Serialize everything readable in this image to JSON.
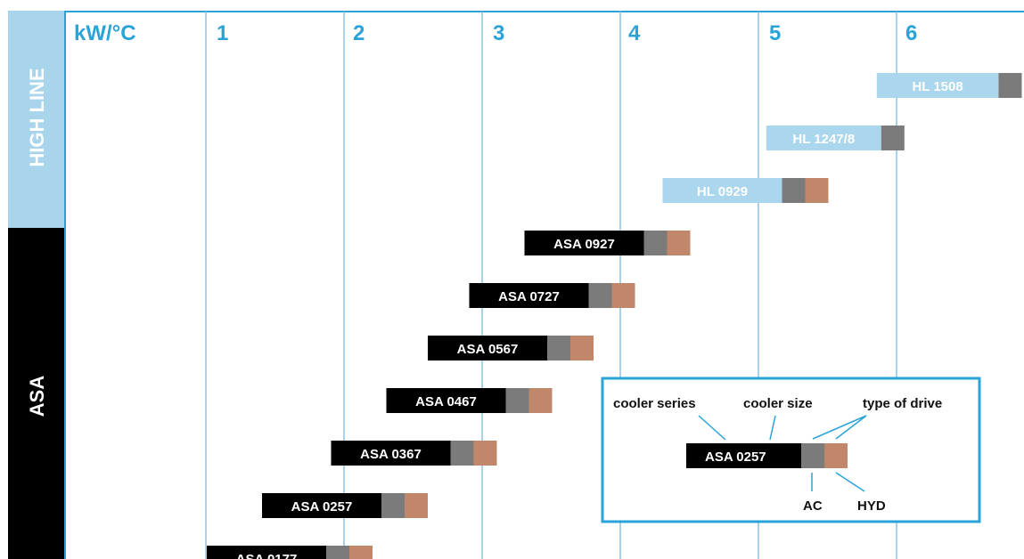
{
  "colors": {
    "accent_blue": "#2aa3d8",
    "high_line_band": "#a8d5ec",
    "high_line_bar": "#aad6ee",
    "asa_band": "#000000",
    "asa_bar": "#000000",
    "ac_segment": "#7b7b7b",
    "hyd_segment": "#c0876a",
    "gridline": "#8cc4e4"
  },
  "bands": [
    {
      "label": "HIGH LINE"
    },
    {
      "label": "ASA"
    }
  ],
  "axis": {
    "unit_label": "kW/°C",
    "ticks": [
      "1",
      "2",
      "3",
      "4",
      "5",
      "6"
    ]
  },
  "chart_data": {
    "type": "bar",
    "orientation": "horizontal range",
    "xlabel": "kW/°C",
    "xlim": [
      0.0,
      6.9
    ],
    "series": [
      {
        "label": "HL 1508",
        "group": "HIGH LINE",
        "start": 5.85,
        "end": 6.9,
        "drives": [
          "AC"
        ]
      },
      {
        "label": "HL 1247/8",
        "group": "HIGH LINE",
        "start": 5.05,
        "end": 6.05,
        "drives": [
          "AC"
        ]
      },
      {
        "label": "HL 0929",
        "group": "HIGH LINE",
        "start": 4.3,
        "end": 5.5,
        "drives": [
          "AC",
          "HYD"
        ]
      },
      {
        "label": "ASA 0927",
        "group": "ASA",
        "start": 3.3,
        "end": 4.5,
        "drives": [
          "AC",
          "HYD"
        ]
      },
      {
        "label": "ASA 0727",
        "group": "ASA",
        "start": 2.9,
        "end": 4.1,
        "drives": [
          "AC",
          "HYD"
        ]
      },
      {
        "label": "ASA 0567",
        "group": "ASA",
        "start": 2.6,
        "end": 3.8,
        "drives": [
          "AC",
          "HYD"
        ]
      },
      {
        "label": "ASA 0467",
        "group": "ASA",
        "start": 2.3,
        "end": 3.5,
        "drives": [
          "AC",
          "HYD"
        ]
      },
      {
        "label": "ASA 0367",
        "group": "ASA",
        "start": 1.9,
        "end": 3.1,
        "drives": [
          "AC",
          "HYD"
        ]
      },
      {
        "label": "ASA 0257",
        "group": "ASA",
        "start": 1.4,
        "end": 2.6,
        "drives": [
          "AC",
          "HYD"
        ]
      },
      {
        "label": "ASA 0177",
        "group": "ASA",
        "start": 1.0,
        "end": 2.2,
        "drives": [
          "AC",
          "HYD"
        ]
      }
    ]
  },
  "legend": {
    "cooler_series": "cooler series",
    "cooler_size": "cooler size",
    "type_of_drive": "type of drive",
    "example": "ASA 0257",
    "ac": "AC",
    "hyd": "HYD"
  }
}
